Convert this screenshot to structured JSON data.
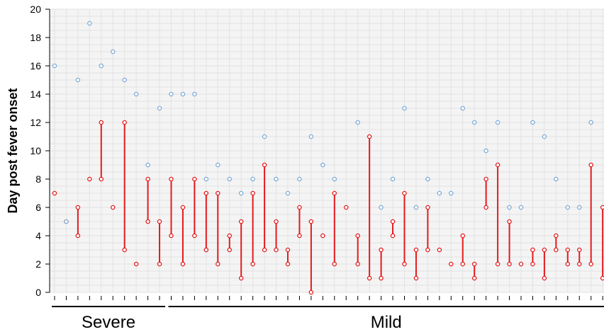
{
  "chart_data": {
    "type": "scatter",
    "title": "",
    "xlabel": "",
    "ylabel": "Day post fever onset",
    "ylim": [
      0,
      20
    ],
    "yticks": [
      0,
      2,
      4,
      6,
      8,
      10,
      12,
      14,
      16,
      18,
      20
    ],
    "grid": true,
    "n_patients": 48,
    "groups": [
      {
        "name": "Severe",
        "first": 1,
        "last": 10
      },
      {
        "name": "Mild",
        "first": 11,
        "last": 48
      }
    ],
    "colors": {
      "blue": "#7aaad6",
      "red": "#e41a1c",
      "grid": "#e2e2e2",
      "plot_bg": "#f4f4f4"
    },
    "series": [
      {
        "marker": "blue-circle",
        "points": [
          [
            1,
            16
          ],
          [
            2,
            5
          ],
          [
            3,
            15
          ],
          [
            4,
            19
          ],
          [
            5,
            16
          ],
          [
            6,
            17
          ],
          [
            7,
            15
          ],
          [
            8,
            14
          ],
          [
            9,
            9
          ],
          [
            10,
            13
          ],
          [
            11,
            14
          ],
          [
            12,
            14
          ],
          [
            13,
            14
          ],
          [
            14,
            8
          ],
          [
            15,
            9
          ],
          [
            16,
            8
          ],
          [
            17,
            7
          ],
          [
            18,
            8
          ],
          [
            19,
            11
          ],
          [
            20,
            8
          ],
          [
            21,
            7
          ],
          [
            22,
            8
          ],
          [
            23,
            11
          ],
          [
            24,
            9
          ],
          [
            25,
            8
          ],
          [
            27,
            12
          ],
          [
            29,
            6
          ],
          [
            30,
            8
          ],
          [
            31,
            13
          ],
          [
            32,
            6
          ],
          [
            33,
            8
          ],
          [
            34,
            7
          ],
          [
            35,
            7
          ],
          [
            36,
            13
          ],
          [
            37,
            12
          ],
          [
            38,
            10
          ],
          [
            39,
            12
          ],
          [
            40,
            6
          ],
          [
            41,
            6
          ],
          [
            42,
            12
          ],
          [
            43,
            11
          ],
          [
            44,
            8
          ],
          [
            45,
            6
          ],
          [
            46,
            6
          ],
          [
            47,
            12
          ]
        ]
      },
      {
        "marker": "red-circle-range",
        "ranges": [
          [
            1,
            7,
            7
          ],
          [
            2,
            5,
            5
          ],
          [
            3,
            4,
            6
          ],
          [
            4,
            8,
            8
          ],
          [
            5,
            8,
            12
          ],
          [
            6,
            6,
            6
          ],
          [
            7,
            3,
            12
          ],
          [
            8,
            2,
            2
          ],
          [
            9,
            5,
            8
          ],
          [
            10,
            2,
            5
          ],
          [
            11,
            4,
            8
          ],
          [
            12,
            2,
            6
          ],
          [
            13,
            4,
            8
          ],
          [
            14,
            3,
            7
          ],
          [
            15,
            2,
            7
          ],
          [
            16,
            3,
            4
          ],
          [
            17,
            1,
            5
          ],
          [
            18,
            2,
            7
          ],
          [
            19,
            3,
            9
          ],
          [
            20,
            3,
            5
          ],
          [
            21,
            2,
            3
          ],
          [
            22,
            4,
            6
          ],
          [
            23,
            0,
            5
          ],
          [
            24,
            4,
            4
          ],
          [
            25,
            2,
            7
          ],
          [
            26,
            6,
            6
          ],
          [
            27,
            2,
            4
          ],
          [
            28,
            1,
            11
          ],
          [
            29,
            1,
            3
          ],
          [
            30,
            4,
            5
          ],
          [
            31,
            2,
            7
          ],
          [
            32,
            1,
            3
          ],
          [
            33,
            3,
            6
          ],
          [
            34,
            3,
            3
          ],
          [
            35,
            2,
            2
          ],
          [
            36,
            2,
            4
          ],
          [
            37,
            1,
            2
          ],
          [
            38,
            6,
            8
          ],
          [
            39,
            2,
            9
          ],
          [
            40,
            2,
            5
          ],
          [
            41,
            2,
            2
          ],
          [
            42,
            2,
            3
          ],
          [
            43,
            1,
            3
          ],
          [
            44,
            3,
            4
          ],
          [
            45,
            2,
            3
          ],
          [
            46,
            2,
            3
          ],
          [
            47,
            2,
            9
          ],
          [
            48,
            1,
            6
          ]
        ]
      }
    ]
  }
}
